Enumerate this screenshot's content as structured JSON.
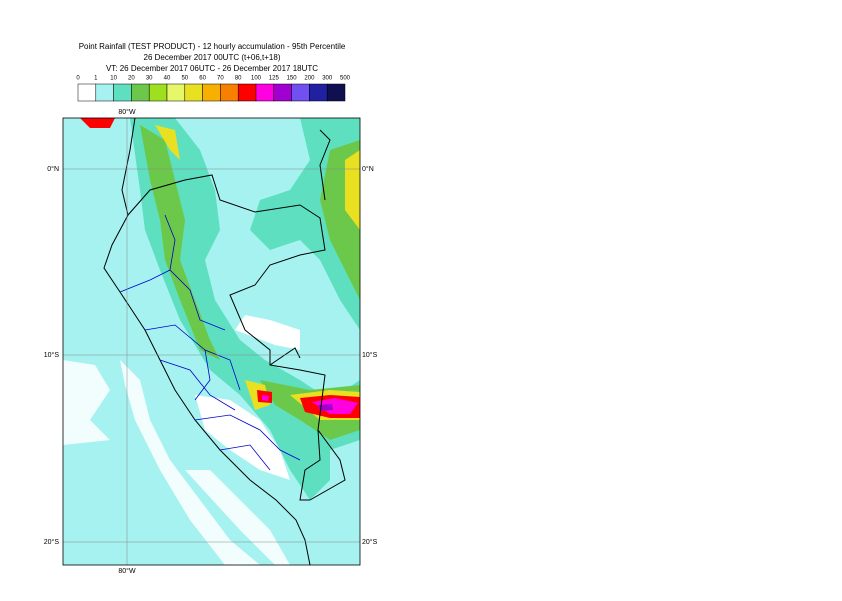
{
  "title": {
    "lines": [
      "Point Rainfall (TEST PRODUCT) - 12 hourly accumulation - 95th Percentile",
      "26 December 2017 00UTC (t+06,t+18)",
      "VT: 26 December 2017 06UTC - 26 December 2017 18UTC"
    ]
  },
  "legend": {
    "labels": [
      "0",
      "1",
      "10",
      "20",
      "30",
      "40",
      "50",
      "60",
      "70",
      "80",
      "100",
      "125",
      "150",
      "200",
      "300",
      "500"
    ],
    "colors": [
      "#ffffff",
      "#a6f2f0",
      "#5ee0c0",
      "#6cc84a",
      "#9ee020",
      "#e6f86a",
      "#e8e020",
      "#f8b000",
      "#f88000",
      "#ff0000",
      "#ff00e0",
      "#a000d0",
      "#7050f0",
      "#2020a0",
      "#101050"
    ]
  },
  "map": {
    "axis_labels": {
      "top": [
        "80°W"
      ],
      "bottom": [
        "80°W"
      ],
      "left": [
        "0°N",
        "10°S",
        "20°S"
      ],
      "right": [
        "0°N",
        "10°S",
        "20°S"
      ]
    }
  }
}
